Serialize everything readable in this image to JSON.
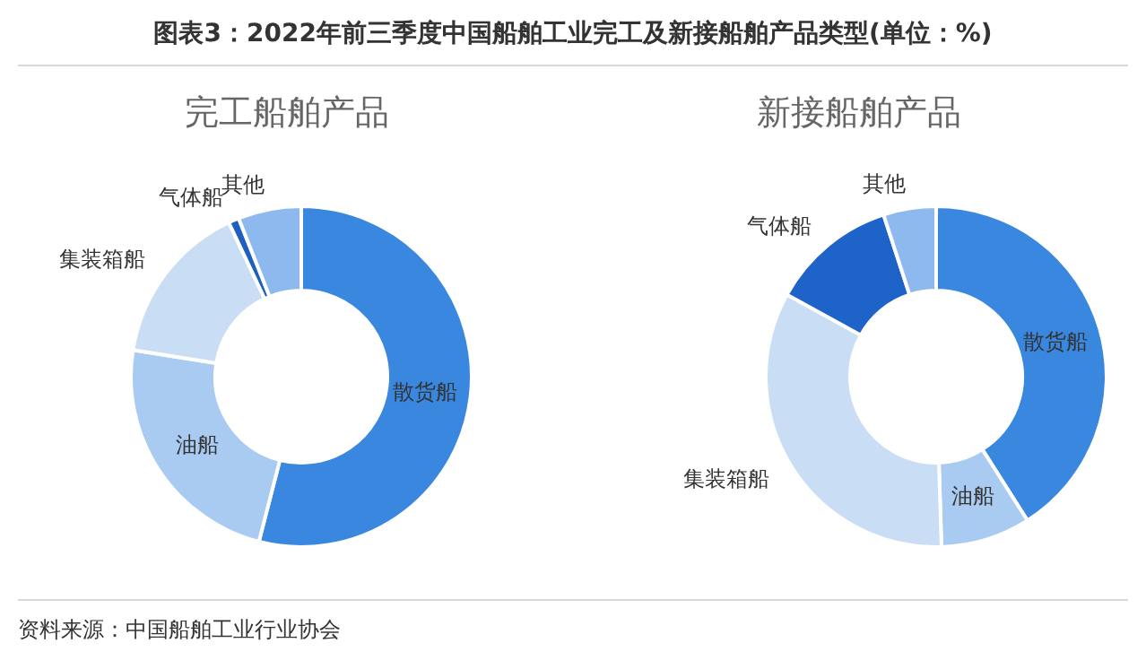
{
  "chart_data": [
    {
      "type": "donut",
      "title": "图表3：2022年前三季度中国船舶工业完工及新接船舶产品类型(单位：%)",
      "subtitle": "完工船舶产品",
      "categories": [
        "散货船",
        "油船",
        "集装箱船",
        "气体船",
        "其他"
      ],
      "values": [
        54,
        23.5,
        15.5,
        1,
        6
      ],
      "colors": [
        "#3a87e0",
        "#a9cbf2",
        "#c9ddf5",
        "#1e5fc0",
        "#8db9ef"
      ],
      "legend": false,
      "annotations": [
        "资料来源：中国船舶工业行业协会"
      ]
    },
    {
      "type": "donut",
      "subtitle": "新接船舶产品",
      "categories": [
        "散货船",
        "油船",
        "集装箱船",
        "气体船",
        "其他"
      ],
      "values": [
        41,
        8.5,
        33.5,
        12,
        5
      ],
      "colors": [
        "#3a87e0",
        "#a9cbf2",
        "#c9ddf5",
        "#1e64c8",
        "#8db9ef"
      ],
      "legend": false
    }
  ]
}
